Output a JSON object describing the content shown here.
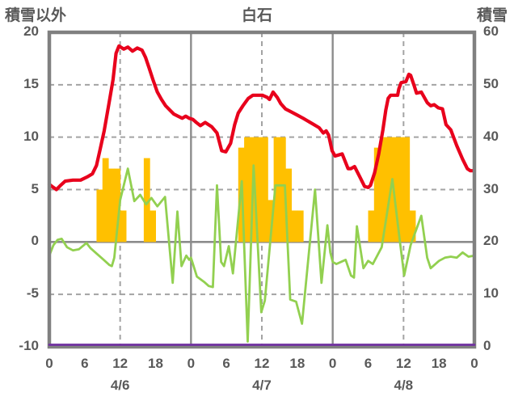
{
  "header": {
    "left_axis_title": "積雪以外",
    "title": "白石",
    "right_axis_title": "積雪"
  },
  "chart_data": {
    "type": "combo",
    "title": "白石",
    "x_axis": {
      "unit": "hour",
      "range": [
        0,
        72
      ],
      "tick_hours": [
        0,
        6,
        12,
        18,
        24,
        30,
        36,
        42,
        48,
        54,
        60,
        66,
        72
      ],
      "tick_labels": [
        "0",
        "6",
        "12",
        "18",
        "0",
        "6",
        "12",
        "18",
        "0",
        "6",
        "12",
        "18",
        "0"
      ],
      "date_labels": [
        {
          "hour": 12,
          "label": "4/6"
        },
        {
          "hour": 36,
          "label": "4/7"
        },
        {
          "hour": 60,
          "label": "4/8"
        }
      ]
    },
    "left_axis": {
      "title": "積雪以外",
      "min": -10,
      "max": 20,
      "ticks": [
        20,
        15,
        10,
        5,
        0,
        -5,
        -10
      ]
    },
    "right_axis": {
      "title": "積雪",
      "min": 0,
      "max": 60,
      "ticks": [
        60,
        50,
        40,
        30,
        20,
        10,
        0
      ]
    },
    "gridlines": {
      "horizontal_dashed_left_values": [
        15,
        10,
        5,
        -5
      ],
      "horizontal_solid_left_values": [
        0
      ],
      "vertical_dashed_hours": [
        12,
        36,
        60
      ],
      "vertical_solid_hours": [
        24,
        48
      ],
      "grid_color": "#a3a3a3",
      "solid_color": "#8c8c8c",
      "border_color": "#808080"
    },
    "series": {
      "orange_bars": {
        "type": "bar",
        "axis": "left",
        "color": "#FFC000",
        "points": [
          [
            8,
            5
          ],
          [
            9,
            8
          ],
          [
            10,
            7
          ],
          [
            11,
            7
          ],
          [
            12,
            3
          ],
          [
            16,
            8
          ],
          [
            17,
            3
          ],
          [
            32,
            9
          ],
          [
            33,
            10
          ],
          [
            34,
            10
          ],
          [
            35,
            10
          ],
          [
            36,
            10
          ],
          [
            37,
            4
          ],
          [
            38,
            10
          ],
          [
            39,
            10
          ],
          [
            40,
            7
          ],
          [
            41,
            3
          ],
          [
            42,
            3
          ],
          [
            54,
            3
          ],
          [
            55,
            9
          ],
          [
            56,
            10
          ],
          [
            57,
            10
          ],
          [
            58,
            10
          ],
          [
            59,
            10
          ],
          [
            60,
            10
          ],
          [
            61,
            3
          ]
        ]
      },
      "red_line": {
        "type": "line",
        "axis": "left",
        "color": "#E8001C",
        "points": [
          [
            0,
            5.5
          ],
          [
            0.7,
            5.2
          ],
          [
            1.2,
            5.0
          ],
          [
            1.9,
            5.4
          ],
          [
            2.7,
            5.8
          ],
          [
            4,
            5.9
          ],
          [
            5.3,
            5.9
          ],
          [
            6.4,
            6.2
          ],
          [
            7.3,
            6.5
          ],
          [
            8,
            7.3
          ],
          [
            8.6,
            8.8
          ],
          [
            9.3,
            10.6
          ],
          [
            10.1,
            13.2
          ],
          [
            10.8,
            15.5
          ],
          [
            11.3,
            18.0
          ],
          [
            11.8,
            18.7
          ],
          [
            12.6,
            18.4
          ],
          [
            13.3,
            18.6
          ],
          [
            14.1,
            18.2
          ],
          [
            14.9,
            18.5
          ],
          [
            15.7,
            18.3
          ],
          [
            16.3,
            17.6
          ],
          [
            16.9,
            16.6
          ],
          [
            17.6,
            15.4
          ],
          [
            18.3,
            14.3
          ],
          [
            19,
            13.6
          ],
          [
            19.7,
            13.0
          ],
          [
            20.4,
            12.6
          ],
          [
            21.1,
            12.2
          ],
          [
            21.8,
            12.0
          ],
          [
            22.5,
            11.8
          ],
          [
            23.1,
            12.0
          ],
          [
            23.7,
            11.8
          ],
          [
            24.3,
            11.7
          ],
          [
            24.9,
            11.4
          ],
          [
            25.6,
            11.1
          ],
          [
            26.4,
            11.4
          ],
          [
            27.5,
            11.0
          ],
          [
            28.4,
            10.4
          ],
          [
            29.2,
            8.7
          ],
          [
            29.9,
            8.6
          ],
          [
            30.7,
            9.4
          ],
          [
            31.4,
            11.2
          ],
          [
            32,
            12.3
          ],
          [
            32.8,
            13.0
          ],
          [
            33.7,
            13.7
          ],
          [
            34.5,
            14.0
          ],
          [
            36.1,
            14.0
          ],
          [
            36.9,
            13.8
          ],
          [
            37.3,
            13.6
          ],
          [
            37.9,
            14.3
          ],
          [
            38.6,
            13.8
          ],
          [
            39.2,
            13.2
          ],
          [
            40,
            12.7
          ],
          [
            41,
            12.4
          ],
          [
            42,
            12.1
          ],
          [
            43,
            11.8
          ],
          [
            43.9,
            11.5
          ],
          [
            44.8,
            11.2
          ],
          [
            45.7,
            10.9
          ],
          [
            46.4,
            10.4
          ],
          [
            46.9,
            10.6
          ],
          [
            47.3,
            10.2
          ],
          [
            47.9,
            8.7
          ],
          [
            48.4,
            8.2
          ],
          [
            49,
            8.3
          ],
          [
            49.6,
            8.4
          ],
          [
            50.6,
            7.0
          ],
          [
            51.1,
            7.0
          ],
          [
            51.7,
            7.2
          ],
          [
            52.6,
            6.2
          ],
          [
            53.4,
            5.3
          ],
          [
            54,
            5.2
          ],
          [
            54.4,
            5.4
          ],
          [
            55.1,
            6.6
          ],
          [
            55.8,
            8.4
          ],
          [
            56.5,
            10.7
          ],
          [
            57,
            12.6
          ],
          [
            57.4,
            13.7
          ],
          [
            57.8,
            14.0
          ],
          [
            59,
            14.0
          ],
          [
            59.2,
            14.6
          ],
          [
            59.6,
            15.2
          ],
          [
            60.4,
            15.3
          ],
          [
            60.9,
            16.0
          ],
          [
            61.2,
            15.9
          ],
          [
            61.8,
            14.9
          ],
          [
            62.2,
            14.2
          ],
          [
            63,
            14.3
          ],
          [
            64,
            13.3
          ],
          [
            64.6,
            13.0
          ],
          [
            65.2,
            13.1
          ],
          [
            65.9,
            12.8
          ],
          [
            66.6,
            12.7
          ],
          [
            67.2,
            11.2
          ],
          [
            68,
            10.7
          ],
          [
            69,
            9.2
          ],
          [
            70,
            7.9
          ],
          [
            70.8,
            7.0
          ],
          [
            71.3,
            6.8
          ],
          [
            72,
            6.8
          ]
        ]
      },
      "green_line": {
        "type": "line",
        "axis": "left",
        "color": "#92D050",
        "points": [
          [
            0,
            -1.3
          ],
          [
            0.7,
            -0.3
          ],
          [
            1.4,
            0.2
          ],
          [
            2.1,
            0.3
          ],
          [
            3,
            -0.5
          ],
          [
            4,
            -0.8
          ],
          [
            5,
            -0.7
          ],
          [
            6.3,
            -0.1
          ],
          [
            7,
            -0.6
          ],
          [
            8,
            -1.1
          ],
          [
            9,
            -1.6
          ],
          [
            10.2,
            -2.2
          ],
          [
            10.6,
            -2.3
          ],
          [
            11,
            -1.5
          ],
          [
            12,
            4.0
          ],
          [
            13.3,
            7.0
          ],
          [
            14.4,
            3.9
          ],
          [
            15.4,
            4.5
          ],
          [
            16.4,
            3.6
          ],
          [
            17.3,
            4.2
          ],
          [
            18.3,
            3.4
          ],
          [
            19.6,
            4.3
          ],
          [
            20.9,
            -3.9
          ],
          [
            21.7,
            2.9
          ],
          [
            22.4,
            -2.3
          ],
          [
            23.2,
            -1.3
          ],
          [
            23.7,
            -1.7
          ],
          [
            24,
            -1.5
          ],
          [
            25,
            -3.3
          ],
          [
            26.2,
            -3.8
          ],
          [
            27,
            -4.2
          ],
          [
            27.7,
            -4.3
          ],
          [
            28.4,
            5.4
          ],
          [
            29.1,
            -1.9
          ],
          [
            29.6,
            -2.3
          ],
          [
            30.4,
            -0.4
          ],
          [
            31.1,
            -3.0
          ],
          [
            32.6,
            5.8
          ],
          [
            33.6,
            -9.5
          ],
          [
            34.6,
            7.3
          ],
          [
            35.9,
            -6.7
          ],
          [
            36.5,
            -5.6
          ],
          [
            38.3,
            5.4
          ],
          [
            39.9,
            5.4
          ],
          [
            40.8,
            -5.5
          ],
          [
            41.8,
            -5.7
          ],
          [
            42.8,
            -7.8
          ],
          [
            45,
            5.0
          ],
          [
            46.1,
            -3.9
          ],
          [
            47.1,
            1.6
          ],
          [
            47.6,
            -1.0
          ],
          [
            48,
            -1.9
          ],
          [
            48.6,
            -2.1
          ],
          [
            49.8,
            -1.8
          ],
          [
            50.2,
            -1.7
          ],
          [
            51.1,
            -3.2
          ],
          [
            51.6,
            -3.4
          ],
          [
            52.1,
            1.5
          ],
          [
            53.2,
            -2.5
          ],
          [
            54,
            -1.8
          ],
          [
            54.8,
            -2.1
          ],
          [
            56.3,
            -0.5
          ],
          [
            58.1,
            6.0
          ],
          [
            59.4,
            0.0
          ],
          [
            60.1,
            -3.2
          ],
          [
            61.2,
            -0.3
          ],
          [
            63,
            2.5
          ],
          [
            64,
            -1.5
          ],
          [
            64.6,
            -2.5
          ],
          [
            66,
            -1.8
          ],
          [
            67,
            -1.5
          ],
          [
            68,
            -1.4
          ],
          [
            69,
            -1.5
          ],
          [
            70,
            -1.0
          ],
          [
            71,
            -1.4
          ],
          [
            72,
            -1.3
          ]
        ]
      },
      "purple_line": {
        "type": "line",
        "axis": "right",
        "color": "#7030A0",
        "points": [
          [
            0,
            0
          ],
          [
            72,
            0
          ]
        ]
      }
    }
  }
}
